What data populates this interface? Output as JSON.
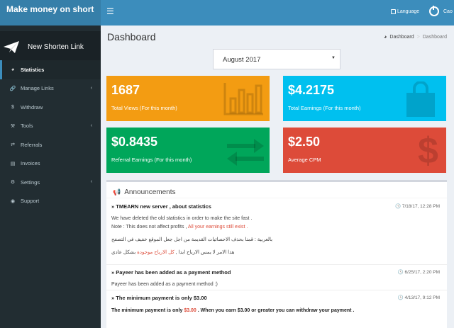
{
  "header": {
    "logo": "Make money on short",
    "menu_icon": "hamburger-icon",
    "language": "Language",
    "username": "Cao"
  },
  "sidebar": {
    "shorten_button": "New Shorten Link",
    "items": [
      {
        "label": "Statistics",
        "icon": "dashboard-icon",
        "active": true
      },
      {
        "label": "Manage Links",
        "icon": "link-icon",
        "caret": true
      },
      {
        "label": "Withdraw",
        "icon": "dollar-icon"
      },
      {
        "label": "Tools",
        "icon": "wrench-icon",
        "caret": true
      },
      {
        "label": "Referrals",
        "icon": "exchange-icon"
      },
      {
        "label": "Invoices",
        "icon": "credit-card-icon"
      },
      {
        "label": "Settings",
        "icon": "gears-icon",
        "caret": true
      },
      {
        "label": "Support",
        "icon": "globe-icon"
      }
    ]
  },
  "content": {
    "title": "Dashboard",
    "breadcrumb": {
      "home": "Dashboard",
      "current": "Dashboard"
    },
    "month_select": "August 2017"
  },
  "stats": {
    "views": {
      "value": "1687",
      "label": "Total Views (For this month)",
      "color": "#f39c12"
    },
    "earnings": {
      "value": "$4.2175",
      "label": "Total Earnings (For this month)",
      "color": "#00c0ef"
    },
    "referral": {
      "value": "$0.8435",
      "label": "Referral Earnings (For this month)",
      "color": "#00a65a"
    },
    "cpm": {
      "value": "$2.50",
      "label": "Average CPM",
      "color": "#dd4b39"
    }
  },
  "announcements": {
    "heading": "Announcements",
    "items": [
      {
        "title": "» TMEARN new server , about statistics",
        "time": "7/18/17, 12:28 PM",
        "line1": "We have deleted the old statistics in order to make the site fast .",
        "line2_prefix": "Note : This does not affect profits ,",
        "line2_red": "All your earnings still exist .",
        "line3": "بالعربية : قمنا بحذف الاحصائيات القديمة من اجل جعل الموقع خفيف في التصفح",
        "line4_prefix": "هذا الامر لا يمس الارباح ابدا ,",
        "line4_red": "كل الارباح موجودة",
        "line4_suffix": "بشكل عادي"
      },
      {
        "title": "» Payeer has been added as a payment method",
        "time": "6/25/17, 2:20 PM",
        "line1": "Payeer has been added as a payment method :)"
      },
      {
        "title": "» The minimum payment is only $3.00",
        "time": "4/13/17, 9:12 PM",
        "line1_prefix": "The minimum payment is only",
        "line1_red": "$3.00",
        "line1_suffix": ". When you earn $3.00 or greater you can withdraw your payment ."
      }
    ]
  }
}
